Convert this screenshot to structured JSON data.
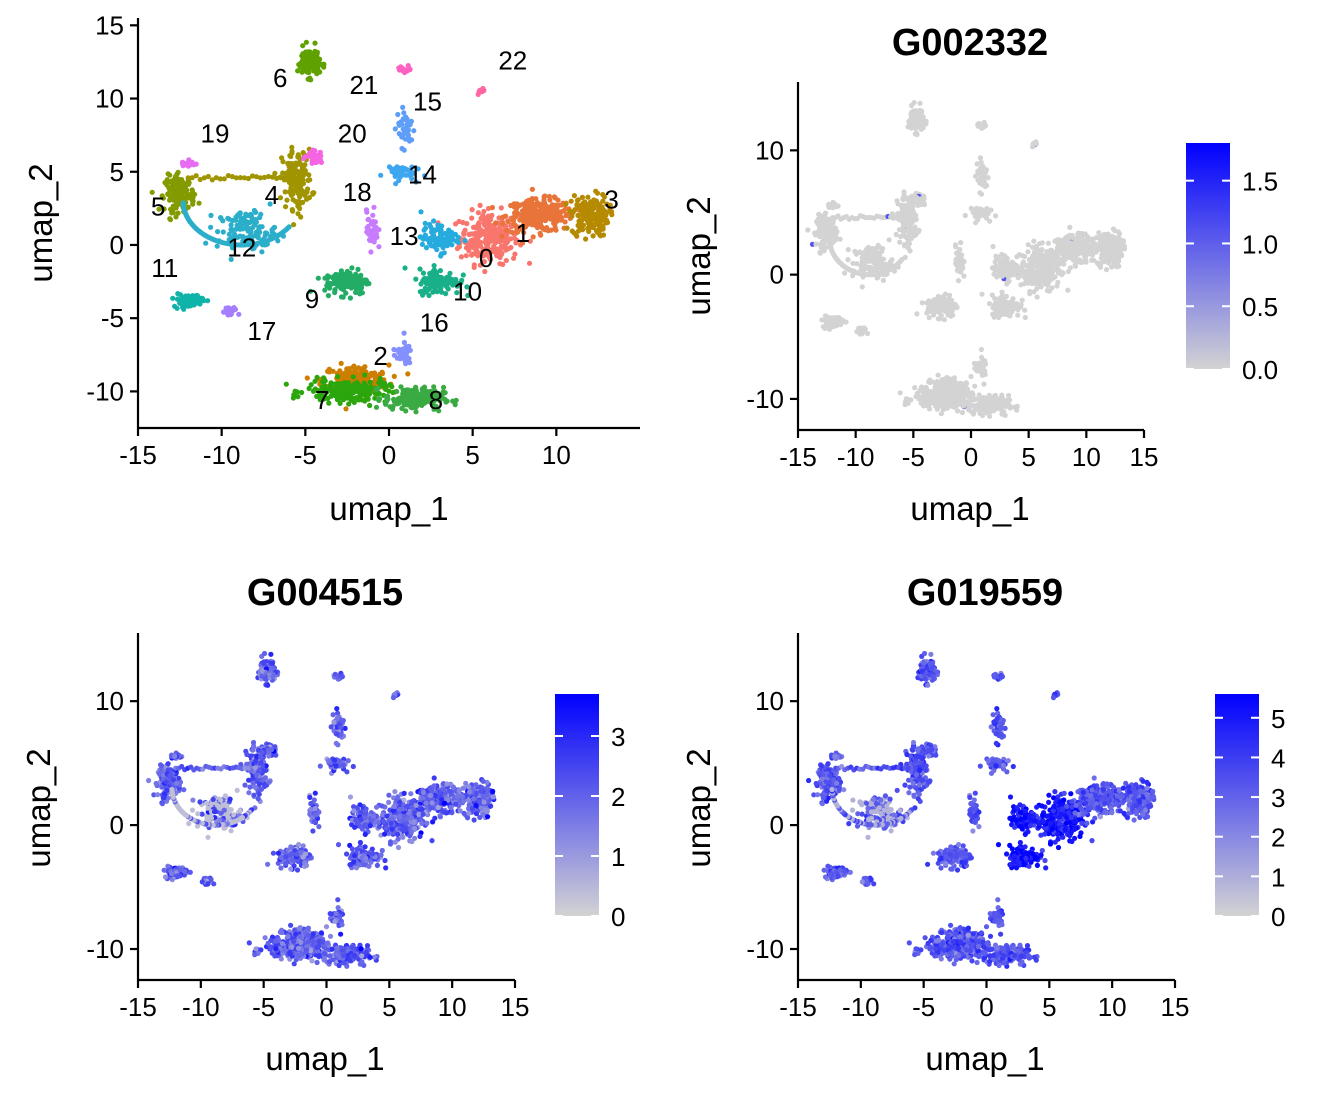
{
  "figure": {
    "panels": [
      {
        "id": "clusters",
        "title": "",
        "xlabel": "umap_1",
        "ylabel": "umap_2"
      },
      {
        "id": "G002332",
        "title": "G002332",
        "xlabel": "umap_1",
        "ylabel": "umap_2"
      },
      {
        "id": "G004515",
        "title": "G004515",
        "xlabel": "umap_1",
        "ylabel": "umap_2"
      },
      {
        "id": "G019559",
        "title": "G019559",
        "xlabel": "umap_1",
        "ylabel": "umap_2"
      }
    ]
  },
  "chart_data": [
    {
      "type": "scatter",
      "title": "",
      "xlabel": "umap_1",
      "ylabel": "umap_2",
      "xlim": [
        -15,
        15
      ],
      "ylim": [
        -12.5,
        15.5
      ],
      "xticks": [
        -15,
        -10,
        -5,
        0,
        5,
        10
      ],
      "yticks": [
        -10,
        -5,
        0,
        5,
        10,
        15
      ],
      "grid": false,
      "legend": "none",
      "clusters": [
        {
          "label": "0",
          "color": "#F8766D",
          "x": 6.0,
          "y": 0.5,
          "label_x": 5.8,
          "label_y": -1.5
        },
        {
          "label": "1",
          "color": "#E8743A",
          "x": 9.0,
          "y": 2.0,
          "label_x": 8.0,
          "label_y": 0.2
        },
        {
          "label": "2",
          "color": "#CD7E00",
          "x": -2.0,
          "y": -9.2,
          "label_x": -0.5,
          "label_y": -8.2
        },
        {
          "label": "3",
          "color": "#B58A00",
          "x": 12.0,
          "y": 2.0,
          "label_x": 13.3,
          "label_y": 2.5
        },
        {
          "label": "4",
          "color": "#A09500",
          "x": -5.5,
          "y": 4.5,
          "label_x": -7.0,
          "label_y": 2.8
        },
        {
          "label": "5",
          "color": "#849B00",
          "x": -12.5,
          "y": 3.5,
          "label_x": -13.8,
          "label_y": 2.0
        },
        {
          "label": "6",
          "color": "#5FA100",
          "x": -4.8,
          "y": 12.5,
          "label_x": -6.5,
          "label_y": 10.8
        },
        {
          "label": "7",
          "color": "#2BA60D",
          "x": -2.5,
          "y": -10.0,
          "label_x": -4.0,
          "label_y": -11.2
        },
        {
          "label": "8",
          "color": "#3AAA42",
          "x": 1.5,
          "y": -10.5,
          "label_x": 2.8,
          "label_y": -11.2
        },
        {
          "label": "9",
          "color": "#22AC65",
          "x": -2.5,
          "y": -2.5,
          "label_x": -4.6,
          "label_y": -4.3
        },
        {
          "label": "10",
          "color": "#19B089",
          "x": 3.0,
          "y": -2.5,
          "label_x": 4.7,
          "label_y": -3.8
        },
        {
          "label": "11",
          "color": "#0FB3A8",
          "x": -12.0,
          "y": -3.8,
          "label_x": -13.4,
          "label_y": -2.2
        },
        {
          "label": "12",
          "color": "#2BAEC9",
          "x": -8.5,
          "y": 1.0,
          "label_x": -8.8,
          "label_y": -0.8
        },
        {
          "label": "13",
          "color": "#26ABDE",
          "x": 3.0,
          "y": 0.5,
          "label_x": 0.9,
          "label_y": 0.0
        },
        {
          "label": "14",
          "color": "#3DA6F0",
          "x": 0.5,
          "y": 5.0,
          "label_x": 2.0,
          "label_y": 4.2
        },
        {
          "label": "15",
          "color": "#5E9EF8",
          "x": 1.0,
          "y": 8.0,
          "label_x": 2.3,
          "label_y": 9.2
        },
        {
          "label": "16",
          "color": "#8590FF",
          "x": 0.8,
          "y": -7.4,
          "label_x": 2.7,
          "label_y": -5.9
        },
        {
          "label": "17",
          "color": "#A57FFF",
          "x": -9.5,
          "y": -4.6,
          "label_x": -7.6,
          "label_y": -6.5
        },
        {
          "label": "18",
          "color": "#C77CFF",
          "x": -1.0,
          "y": 1.0,
          "label_x": -1.9,
          "label_y": 3.0
        },
        {
          "label": "19",
          "color": "#E76BF3",
          "x": -12.0,
          "y": 5.6,
          "label_x": -10.4,
          "label_y": 7.0
        },
        {
          "label": "20",
          "color": "#F564E3",
          "x": -4.5,
          "y": 6.0,
          "label_x": -2.2,
          "label_y": 7.0
        },
        {
          "label": "21",
          "color": "#FF61C3",
          "x": 1.0,
          "y": 12.0,
          "label_x": -1.5,
          "label_y": 10.3
        },
        {
          "label": "22",
          "color": "#FF67A4",
          "x": 5.5,
          "y": 10.5,
          "label_x": 7.4,
          "label_y": 12.0
        }
      ]
    },
    {
      "type": "scatter",
      "title": "G002332",
      "xlabel": "umap_1",
      "ylabel": "umap_2",
      "xlim": [
        -15,
        15
      ],
      "ylim": [
        -12.5,
        15.5
      ],
      "xticks": [
        -15,
        -10,
        -5,
        0,
        5,
        10,
        15
      ],
      "yticks": [
        -10,
        0,
        10
      ],
      "grid": false,
      "legend": "right",
      "color_scale": {
        "low": "#D3D3D3",
        "high": "#0000FF",
        "min": 0.0,
        "max": 1.8,
        "ticks": [
          "0.0",
          "0.5",
          "1.0",
          "1.5"
        ]
      },
      "expression_level": "low"
    },
    {
      "type": "scatter",
      "title": "G004515",
      "xlabel": "umap_1",
      "ylabel": "umap_2",
      "xlim": [
        -15,
        15
      ],
      "ylim": [
        -12.5,
        15.5
      ],
      "xticks": [
        -15,
        -10,
        -5,
        0,
        5,
        10,
        15
      ],
      "yticks": [
        -10,
        0,
        10
      ],
      "grid": false,
      "legend": "right",
      "color_scale": {
        "low": "#D3D3D3",
        "high": "#0000FF",
        "min": 0,
        "max": 3.7,
        "ticks": [
          "0",
          "1",
          "2",
          "3"
        ]
      },
      "expression_level": "medium"
    },
    {
      "type": "scatter",
      "title": "G019559",
      "xlabel": "umap_1",
      "ylabel": "umap_2",
      "xlim": [
        -15,
        15
      ],
      "ylim": [
        -12.5,
        15.5
      ],
      "xticks": [
        -15,
        -10,
        -5,
        0,
        5,
        10,
        15
      ],
      "yticks": [
        -10,
        0,
        10
      ],
      "grid": false,
      "legend": "right",
      "color_scale": {
        "low": "#D3D3D3",
        "high": "#0000FF",
        "min": 0,
        "max": 5.6,
        "ticks": [
          "0",
          "1",
          "2",
          "3",
          "4",
          "5"
        ]
      },
      "expression_level": "high"
    }
  ]
}
